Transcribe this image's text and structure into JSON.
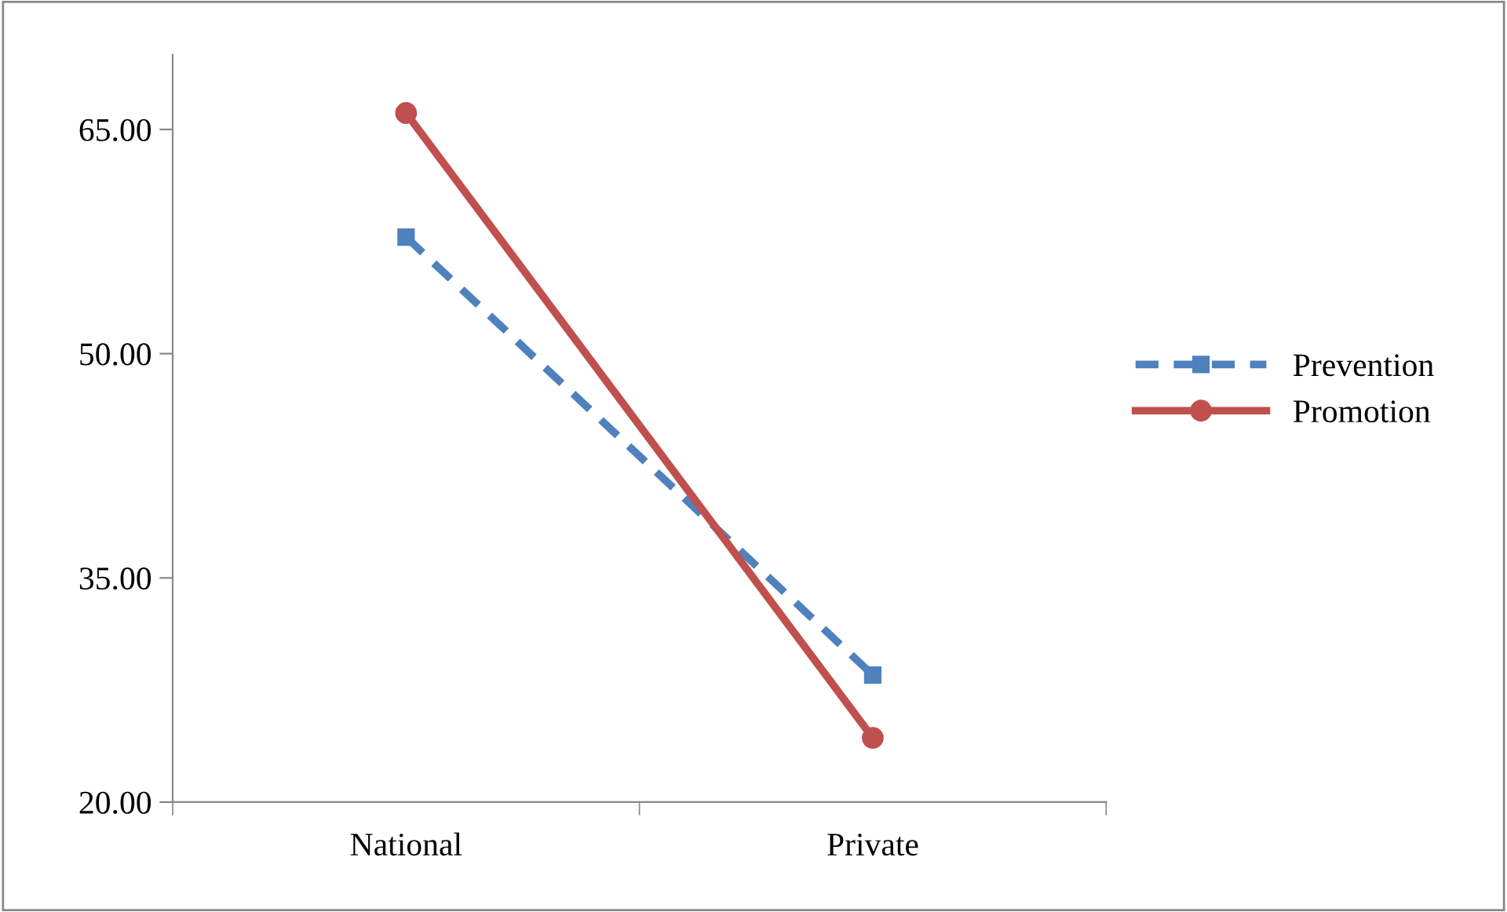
{
  "chart_data": {
    "type": "line",
    "categories": [
      "National",
      "Private"
    ],
    "series": [
      {
        "name": "Prevention",
        "color": "#4f81bd",
        "values": [
          57.8,
          28.5
        ],
        "line_style": "dashed",
        "marker": "square"
      },
      {
        "name": "Promotion",
        "color": "#c0504d",
        "values": [
          66.1,
          24.3
        ],
        "line_style": "solid",
        "marker": "circle"
      }
    ],
    "ylim": [
      20,
      70
    ],
    "yticks": [
      {
        "value": 20,
        "label": "20.00"
      },
      {
        "value": 35,
        "label": "35.00"
      },
      {
        "value": 50,
        "label": "50.00"
      },
      {
        "value": 65,
        "label": "65.00"
      }
    ],
    "grid": false,
    "legend": "right"
  }
}
